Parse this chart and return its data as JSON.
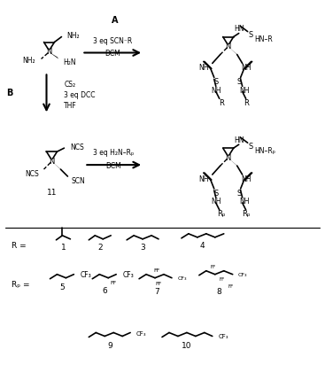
{
  "background_color": "#ffffff",
  "fig_width": 3.67,
  "fig_height": 4.39,
  "dpi": 100,
  "A_label": "A",
  "A_r1": "3 eq SCN⁻R",
  "A_r2": "DCM",
  "B_label": "B",
  "B_r1": "CS₂",
  "B_r2": "3 eq DCC",
  "B_r3": "THF",
  "C_r1": "3 eq H₂N–Rₚ",
  "C_r2": "DCM",
  "comp11": "11",
  "R_eq": "R =",
  "RF_eq": "Rₚ =",
  "c1": "1",
  "c2": "2",
  "c3": "3",
  "c4": "4",
  "c5": "5",
  "c6": "6",
  "c7": "7",
  "c8": "8",
  "c9": "9",
  "c10": "10",
  "CF3": "CF₃",
  "NH2": "NH₂",
  "H2N": "H₂N",
  "NCS_t": "NCS",
  "SCN_t": "SCN",
  "NH_t": "NH",
  "HN_t": "HN",
  "S_t": "S",
  "N_t": "N",
  "R_t": "R",
  "RF_t": "Rₚ",
  "FF_t": "FF",
  "HNR_t": "HN–R",
  "HNRF_t": "HN–Rₚ"
}
